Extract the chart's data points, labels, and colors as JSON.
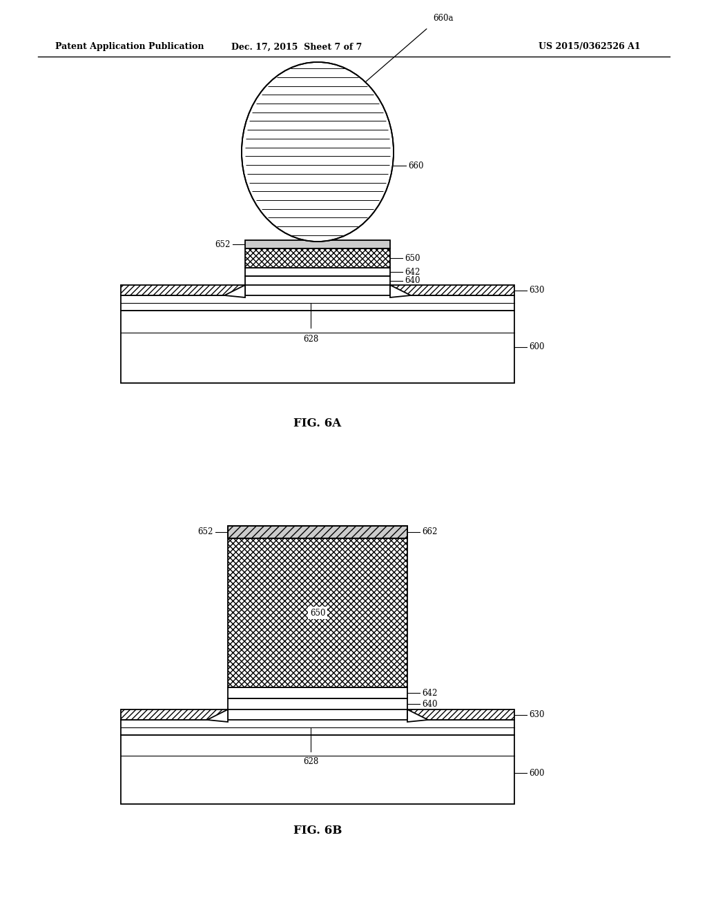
{
  "bg_color": "#ffffff",
  "line_color": "#000000",
  "header_left": "Patent Application Publication",
  "header_mid": "Dec. 17, 2015  Sheet 7 of 7",
  "header_right": "US 2015/0362526 A1",
  "fig6a_label": "FIG. 6A",
  "fig6b_label": "FIG. 6B"
}
